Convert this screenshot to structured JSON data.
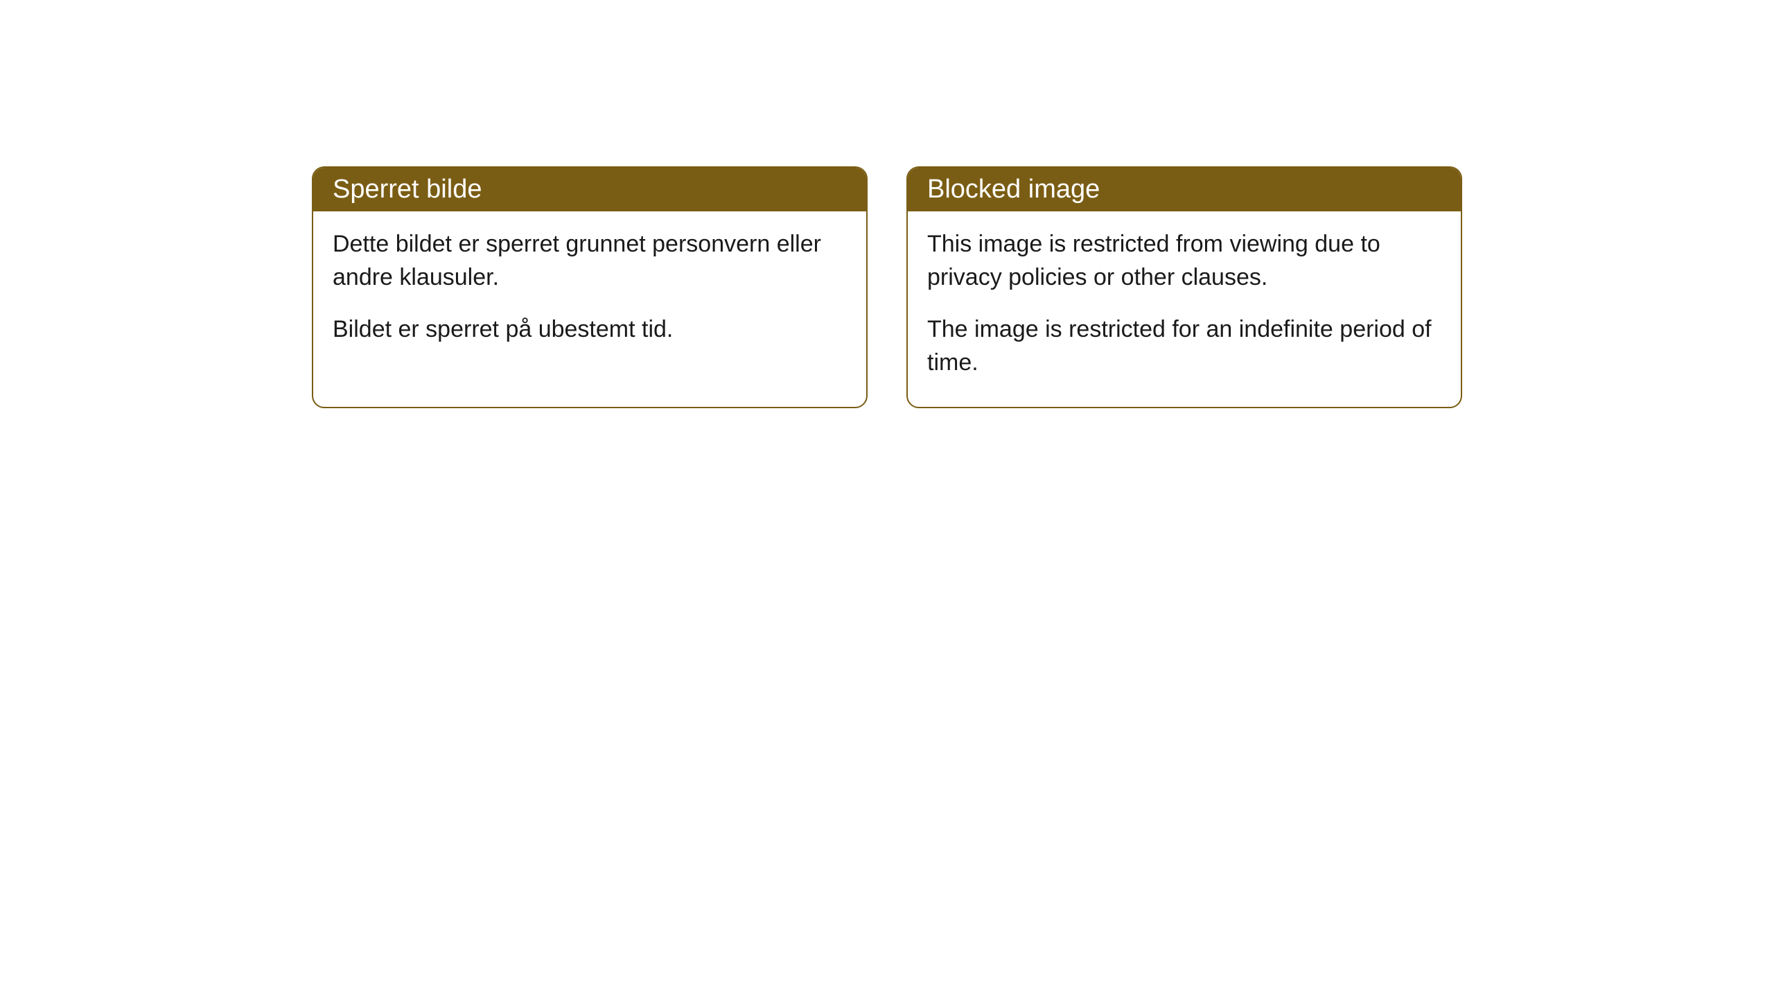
{
  "cards": [
    {
      "title": "Sperret bilde",
      "paragraph1": "Dette bildet er sperret grunnet personvern eller andre klausuler.",
      "paragraph2": "Bildet er sperret på ubestemt tid."
    },
    {
      "title": "Blocked image",
      "paragraph1": "This image is restricted from viewing due to privacy policies or other clauses.",
      "paragraph2": "The image is restricted for an indefinite period of time."
    }
  ],
  "style": {
    "header_bg_color": "#7a5d14",
    "header_text_color": "#ffffff",
    "border_color": "#7a5d14",
    "body_bg_color": "#ffffff",
    "body_text_color": "#1a1a1a",
    "border_radius": 18,
    "header_fontsize": 38,
    "body_fontsize": 34
  }
}
